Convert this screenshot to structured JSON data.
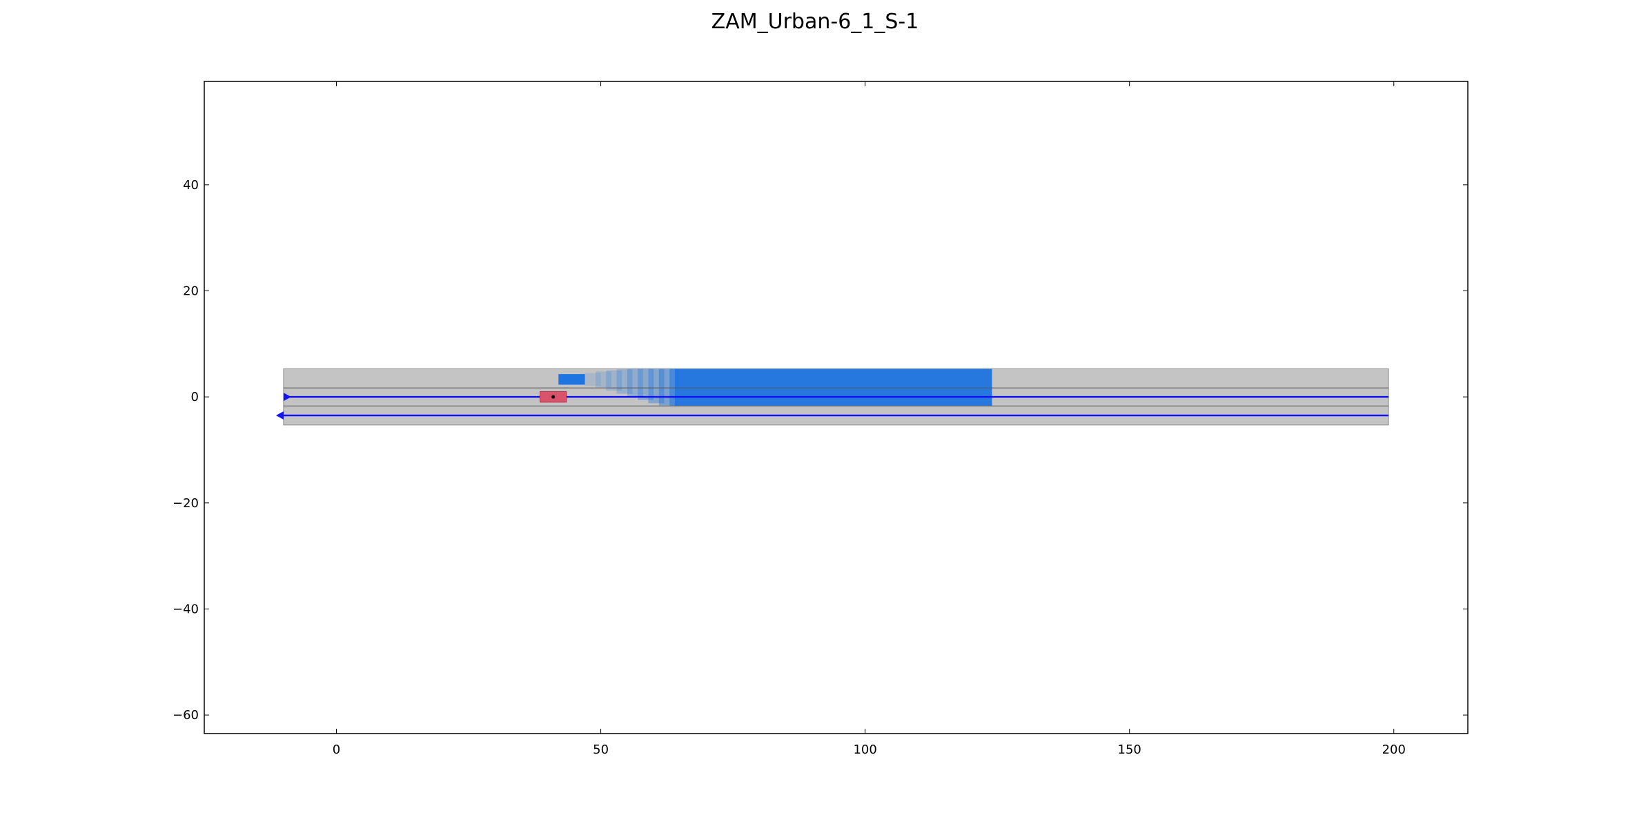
{
  "chart_data": {
    "type": "scatter",
    "title": "ZAM_Urban-6_1_S-1",
    "xlabel": "",
    "ylabel": "",
    "xlim": [
      -25,
      214
    ],
    "ylim": [
      -63.5,
      59.5
    ],
    "xticks": [
      0,
      50,
      100,
      150,
      200
    ],
    "yticks": [
      40,
      20,
      0,
      -20,
      -40,
      -60
    ],
    "xtick_labels": [
      "0",
      "50",
      "100",
      "150",
      "200"
    ],
    "ytick_labels": [
      "40",
      "20",
      "0",
      "−20",
      "−40",
      "−60"
    ],
    "grid": false,
    "road": {
      "x_start": -10,
      "x_end": 199,
      "y_top": 5.3,
      "y_bottom": -5.3,
      "lane_boundaries_y": [
        1.7,
        -1.7
      ],
      "color": "#c4c4c4"
    },
    "lane_centerlines": [
      {
        "y": 0,
        "direction": "right"
      },
      {
        "y": -3.5,
        "direction": "left"
      }
    ],
    "ego_vehicle": {
      "x_min": 38.5,
      "x_max": 43.5,
      "y_min": -1.0,
      "y_max": 1.0,
      "center_x": 41,
      "center_y": 0,
      "color": "#d9536b"
    },
    "obstacle_initial": {
      "x_min": 42,
      "x_max": 47,
      "y_min": 2.3,
      "y_max": 4.3,
      "color": "#1e74e0"
    },
    "obstacle_occupancy_trail": [
      {
        "x_min": 47,
        "x_max": 50,
        "y_min": 2.1,
        "y_max": 4.5,
        "opacity": 0.15
      },
      {
        "x_min": 49,
        "x_max": 52,
        "y_min": 1.8,
        "y_max": 4.8,
        "opacity": 0.18
      },
      {
        "x_min": 51,
        "x_max": 54,
        "y_min": 1.2,
        "y_max": 5.0,
        "opacity": 0.22
      },
      {
        "x_min": 53,
        "x_max": 56,
        "y_min": 0.6,
        "y_max": 5.2,
        "opacity": 0.26
      },
      {
        "x_min": 55,
        "x_max": 58,
        "y_min": 0.0,
        "y_max": 5.3,
        "opacity": 0.3
      },
      {
        "x_min": 57,
        "x_max": 60,
        "y_min": -0.6,
        "y_max": 5.3,
        "opacity": 0.34
      },
      {
        "x_min": 59,
        "x_max": 62,
        "y_min": -1.2,
        "y_max": 5.3,
        "opacity": 0.38
      },
      {
        "x_min": 61,
        "x_max": 64,
        "y_min": -1.6,
        "y_max": 5.3,
        "opacity": 0.44
      },
      {
        "x_min": 63,
        "x_max": 64.5,
        "y_min": -1.7,
        "y_max": 5.3,
        "opacity": 0.5
      }
    ],
    "obstacle_occupancy_main": {
      "x_min": 64,
      "x_max": 124,
      "y_min": -1.7,
      "y_max": 5.3,
      "color": "#1e74e0"
    },
    "colors": {
      "axes": "#000000",
      "centerline": "#1414f0",
      "lane_line": "#555555"
    }
  }
}
